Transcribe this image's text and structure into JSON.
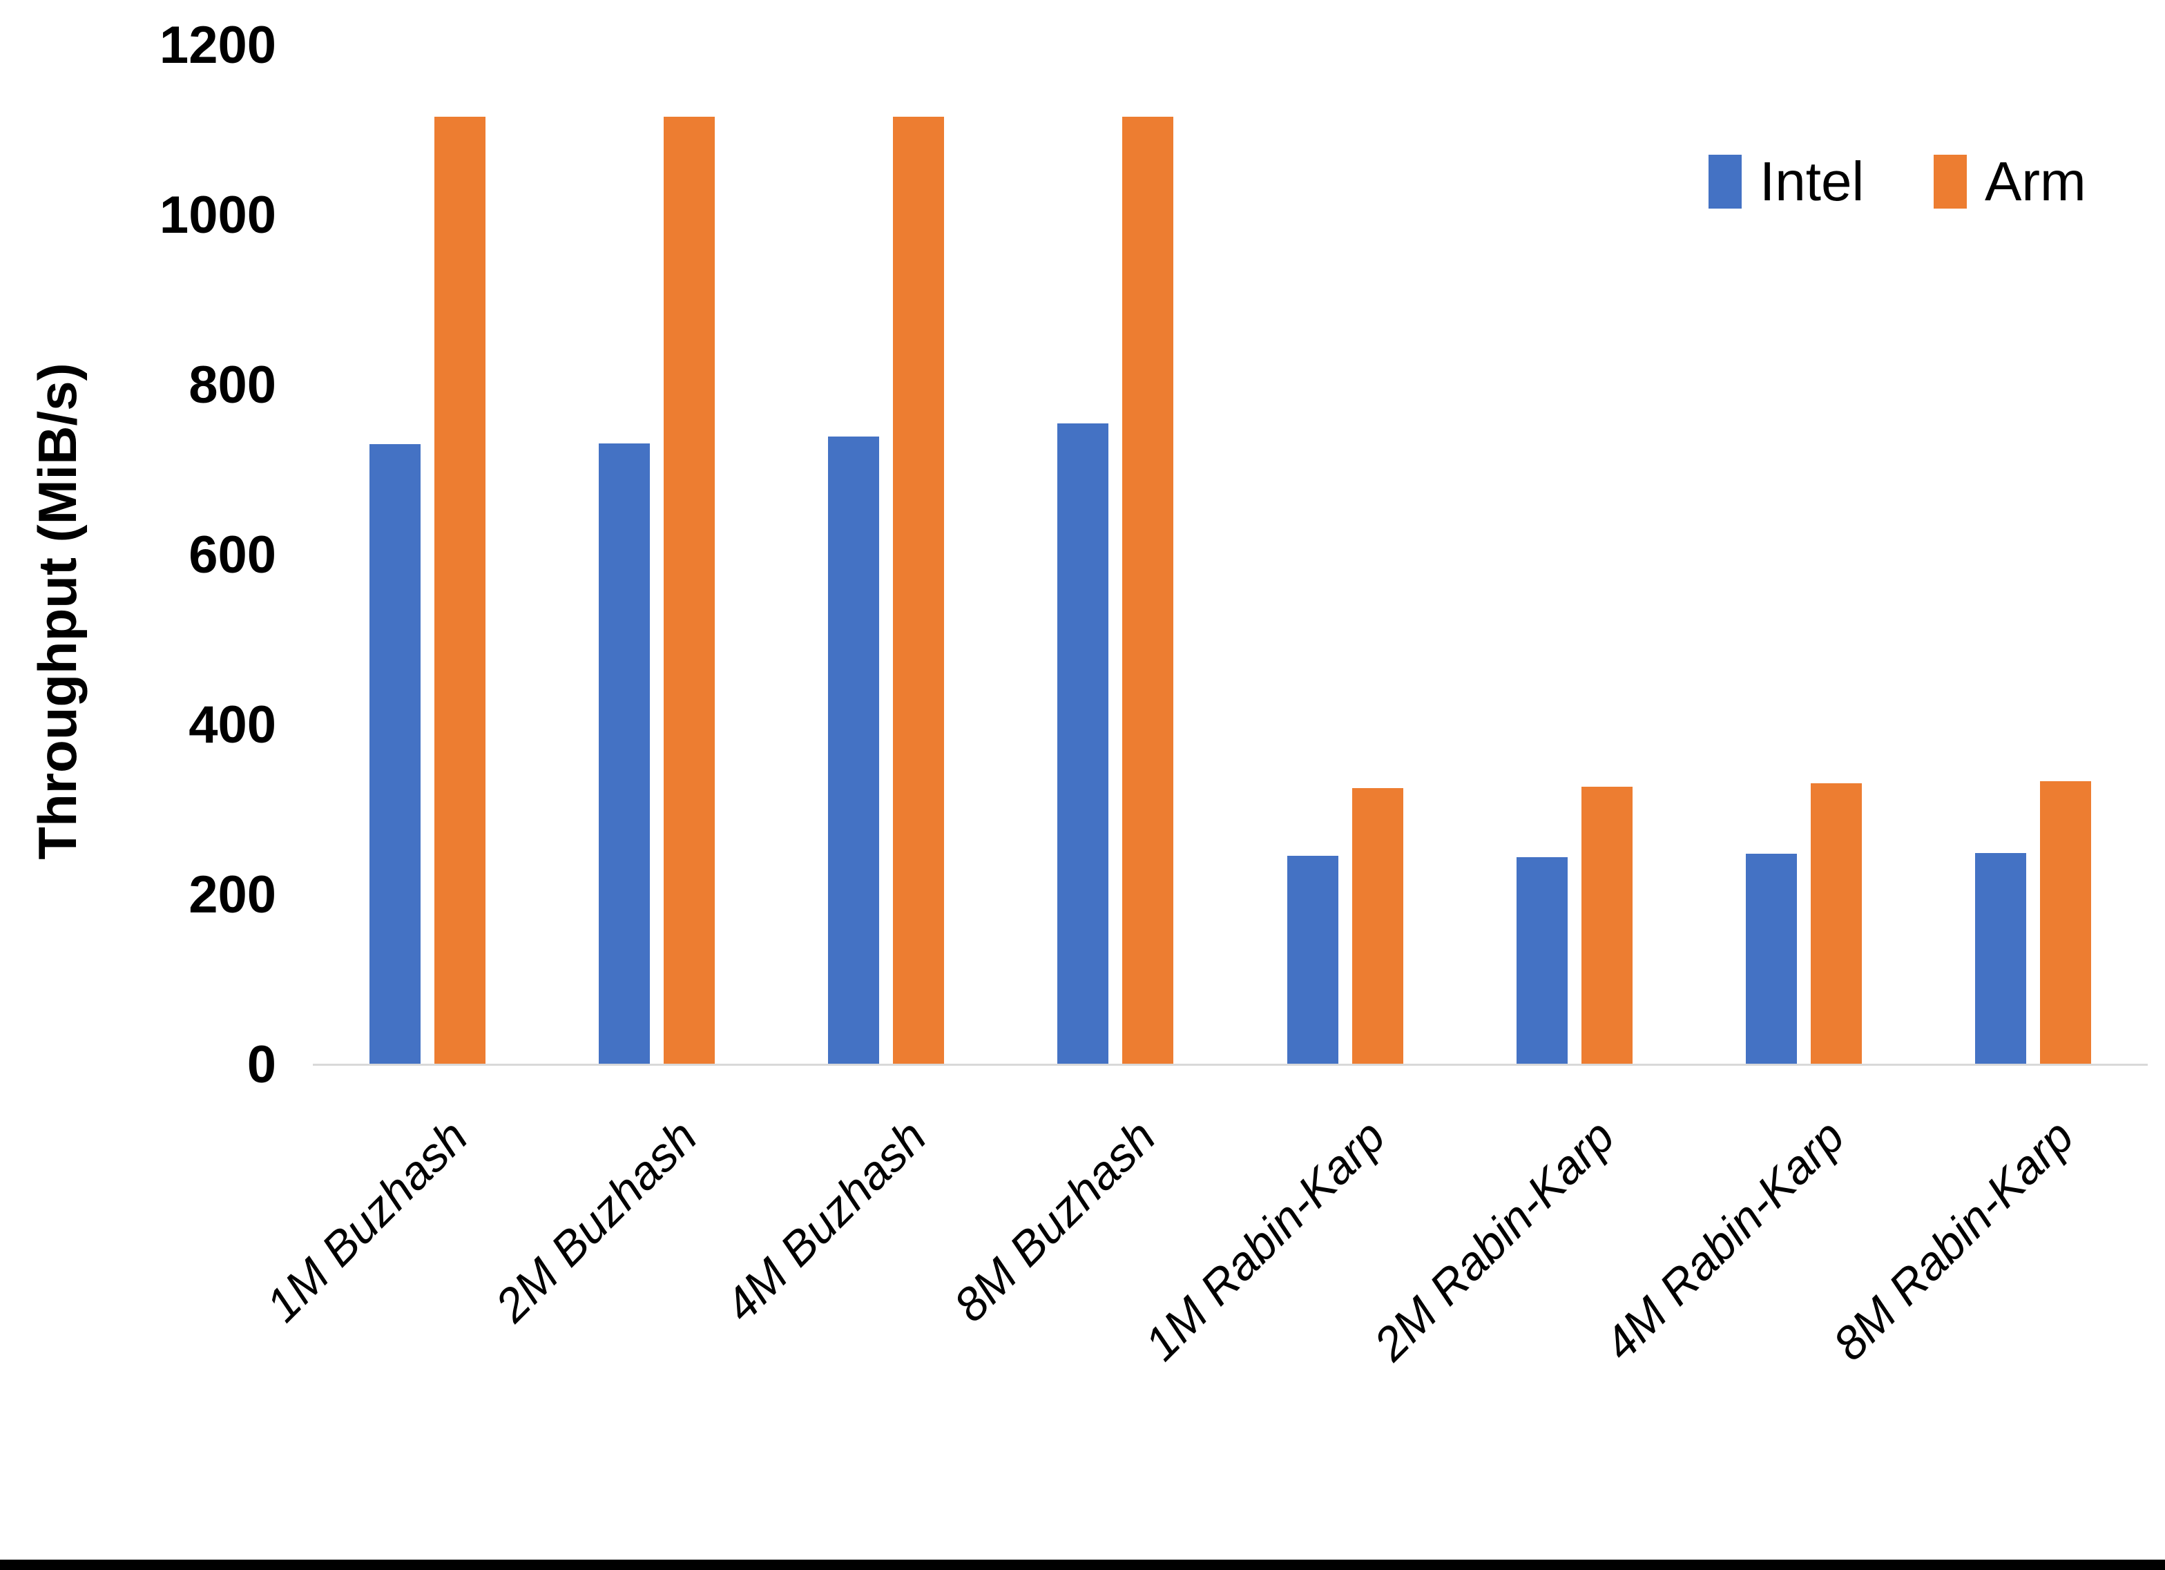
{
  "page": {
    "background": "#ffffff",
    "bottom_bar_color": "#000000"
  },
  "axis": {
    "line_color": "#d9d9d9",
    "text_color": "#000000"
  },
  "legend": {
    "position": "top-right"
  },
  "chart_data": {
    "type": "bar",
    "title": "",
    "xlabel": "",
    "ylabel": "Throughput (MiB/s)",
    "ylim": [
      0,
      1200
    ],
    "yticks": [
      0,
      200,
      400,
      600,
      800,
      1000,
      1200
    ],
    "grid": false,
    "legend_position": "top-right",
    "categories": [
      "1M Buzhash",
      "2M Buzhash",
      "4M Buzhash",
      "8M Buzhash",
      "1M Rabin-Karp",
      "2M Rabin-Karp",
      "4M Rabin-Karp",
      "8M Rabin-Karp"
    ],
    "series": [
      {
        "name": "Intel",
        "color": "#4472c4",
        "values": [
          731,
          732,
          740,
          755,
          246,
          245,
          249,
          250
        ]
      },
      {
        "name": "Arm",
        "color": "#ed7d31",
        "values": [
          1116,
          1116,
          1116,
          1116,
          326,
          328,
          332,
          334
        ]
      }
    ]
  }
}
